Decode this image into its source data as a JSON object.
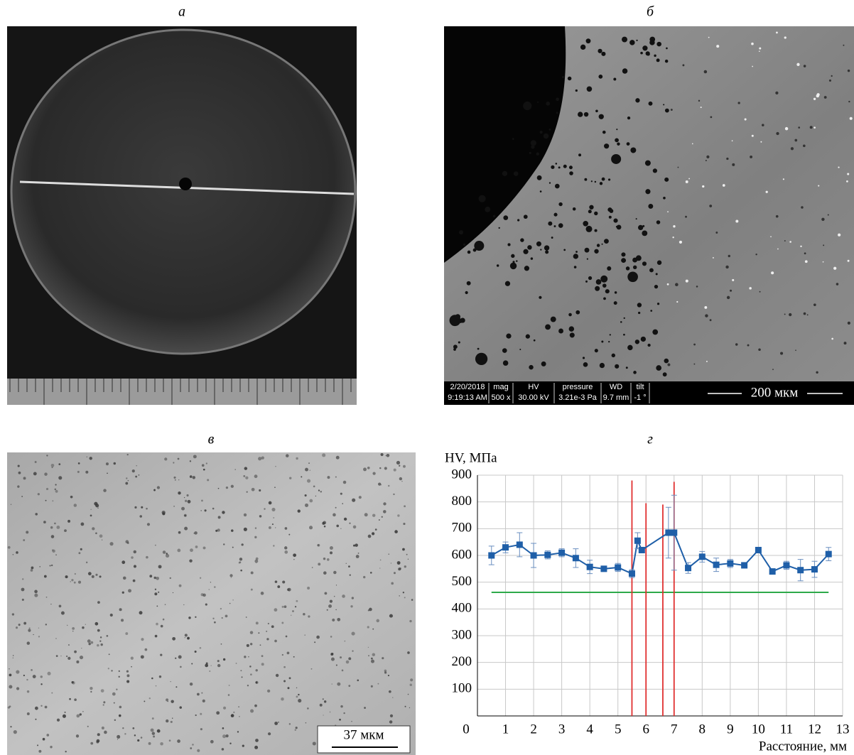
{
  "panel_labels": [
    "а",
    "б",
    "в",
    "г"
  ],
  "sem_info_bar": {
    "columns": [
      [
        "2/20/2018",
        "9:19:13 AM"
      ],
      [
        "mag",
        "500 x"
      ],
      [
        "HV",
        "30.00 kV"
      ],
      [
        "pressure",
        "3.21e-3 Pa"
      ],
      [
        "WD",
        "9.7 mm"
      ],
      [
        "tilt",
        "-1 °"
      ]
    ]
  },
  "scale_bars": [
    "200 мкм",
    "37 мкм"
  ],
  "chart_data": {
    "type": "line",
    "y_label": "HV, МПа",
    "x_label": "Расстояние, мм",
    "x": [
      0.5,
      1,
      1.5,
      2,
      2.5,
      3,
      3.5,
      4,
      4.5,
      5,
      5.5,
      5.7,
      5.85,
      6.8,
      7,
      7.5,
      8,
      8.5,
      9,
      9.5,
      10,
      10.5,
      11,
      11.5,
      12,
      12.5
    ],
    "series": [
      {
        "color": "#1f5fa8",
        "values": [
          600,
          630,
          640,
          600,
          602,
          610,
          590,
          557,
          550,
          555,
          532,
          655,
          620,
          685,
          685,
          553,
          595,
          565,
          570,
          563,
          620,
          540,
          563,
          545,
          548,
          605
        ],
        "errors": [
          35,
          20,
          45,
          45,
          15,
          15,
          35,
          25,
          10,
          15,
          15,
          30,
          10,
          95,
          140,
          20,
          20,
          25,
          15,
          10,
          5,
          10,
          15,
          40,
          30,
          25
        ]
      }
    ],
    "vertical_lines": [
      {
        "x": 5.5,
        "top": 880,
        "color": "#e03030"
      },
      {
        "x": 6,
        "top": 795,
        "color": "#e03030"
      },
      {
        "x": 6.6,
        "top": 790,
        "color": "#e03030"
      },
      {
        "x": 7,
        "top": 875,
        "color": "#e03030"
      }
    ],
    "reference_line": {
      "value": 462,
      "x": [
        0.5,
        12.5
      ],
      "color": "#2eaa4a"
    },
    "xlim": [
      0,
      13
    ],
    "ylim": [
      0,
      900
    ],
    "xticks": [
      1,
      2,
      3,
      4,
      5,
      6,
      7,
      8,
      9,
      10,
      11,
      12,
      13
    ],
    "yticks": [
      0,
      100,
      200,
      300,
      400,
      500,
      600,
      700,
      800,
      900
    ],
    "grid": true
  }
}
